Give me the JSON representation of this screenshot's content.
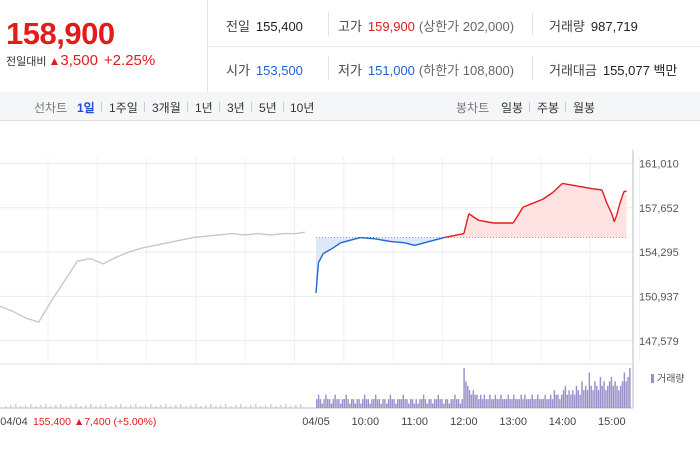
{
  "quote": {
    "price": "158,900",
    "change_label": "전일대비",
    "change_arrow": "▲",
    "change_value": "3,500",
    "change_percent": "+2.25%"
  },
  "stats": {
    "prev_close_label": "전일",
    "prev_close": "155,400",
    "high_label": "고가",
    "high": "159,900",
    "upper_limit": "(상한가 202,000)",
    "volume_label": "거래량",
    "volume": "987,719",
    "open_label": "시가",
    "open": "153,500",
    "low_label": "저가",
    "low": "151,000",
    "lower_limit": "(하한가 108,800)",
    "trade_value_label": "거래대금",
    "trade_value": "155,077 백만"
  },
  "period_bar": {
    "line_label": "선차트",
    "periods": [
      "1일",
      "1주일",
      "3개월",
      "1년",
      "3년",
      "5년",
      "10년"
    ],
    "active_period": "1일",
    "candle_label": "봉차트",
    "candles": [
      "일봉",
      "주봉",
      "월봉"
    ]
  },
  "colors": {
    "up": "#e21b1b",
    "down": "#1f65d6",
    "prev_day": "#c8c8c8",
    "volume": "#9b8fc9"
  },
  "chart_data": [
    {
      "type": "line",
      "name": "intraday-price",
      "ylim": [
        146500,
        161500
      ],
      "yticks": [
        "161,010",
        "157,652",
        "154,295",
        "150,937",
        "147,579"
      ],
      "ytick_values": [
        161010,
        157652,
        154295,
        150937,
        147579
      ],
      "xticks": [
        "04/04",
        "04/05",
        "10:00",
        "11:00",
        "12:00",
        "13:00",
        "14:00",
        "15:00"
      ],
      "xtick_times": [
        0,
        9,
        10,
        11,
        12,
        13,
        14,
        15
      ],
      "prev_close": 155400,
      "prev_day_legend": "04/04  155,400 ▲7,400 (+5.00%)",
      "prev_day_series": [
        [
          0,
          150200
        ],
        [
          0.3,
          149800
        ],
        [
          0.6,
          149300
        ],
        [
          0.9,
          149000
        ],
        [
          1.2,
          150600
        ],
        [
          1.5,
          152100
        ],
        [
          1.8,
          153600
        ],
        [
          2.1,
          153800
        ],
        [
          2.4,
          153400
        ],
        [
          2.7,
          153900
        ],
        [
          3.0,
          154300
        ],
        [
          3.3,
          154600
        ],
        [
          3.6,
          154800
        ],
        [
          3.9,
          155000
        ],
        [
          4.2,
          155200
        ],
        [
          4.5,
          155400
        ],
        [
          4.8,
          155500
        ],
        [
          5.1,
          155600
        ],
        [
          5.4,
          155700
        ],
        [
          5.7,
          155600
        ],
        [
          6.0,
          155700
        ],
        [
          6.3,
          155600
        ],
        [
          6.6,
          155700
        ],
        [
          6.9,
          155700
        ],
        [
          7.1,
          155800
        ]
      ],
      "today_series": [
        [
          9.0,
          151200
        ],
        [
          9.05,
          153500
        ],
        [
          9.15,
          154200
        ],
        [
          9.3,
          154500
        ],
        [
          9.5,
          155000
        ],
        [
          9.7,
          155200
        ],
        [
          9.9,
          155400
        ],
        [
          10.2,
          155300
        ],
        [
          10.5,
          155100
        ],
        [
          10.8,
          155000
        ],
        [
          11.0,
          154800
        ],
        [
          11.3,
          155100
        ],
        [
          11.6,
          155400
        ],
        [
          12.0,
          155700
        ],
        [
          12.1,
          157200
        ],
        [
          12.3,
          156700
        ],
        [
          12.6,
          156500
        ],
        [
          13.0,
          156500
        ],
        [
          13.2,
          157700
        ],
        [
          13.4,
          158000
        ],
        [
          13.6,
          158300
        ],
        [
          13.8,
          158800
        ],
        [
          14.0,
          159500
        ],
        [
          14.3,
          159300
        ],
        [
          14.6,
          159100
        ],
        [
          14.8,
          159000
        ],
        [
          14.9,
          158000
        ],
        [
          15.0,
          157200
        ],
        [
          15.05,
          156600
        ],
        [
          15.1,
          157100
        ],
        [
          15.15,
          157800
        ],
        [
          15.2,
          158400
        ],
        [
          15.25,
          158900
        ],
        [
          15.3,
          158900
        ]
      ],
      "legend": "거래량",
      "volume_series": [
        2,
        3,
        2,
        1,
        2,
        3,
        2,
        2,
        1,
        2,
        3,
        2,
        2,
        1,
        2,
        2,
        3,
        2,
        1,
        2,
        2,
        1,
        2,
        2,
        1,
        2,
        3,
        2,
        2,
        1,
        2,
        2,
        3,
        2,
        2,
        1,
        2,
        2,
        1,
        2,
        3,
        2,
        2,
        1,
        2,
        2,
        2,
        3,
        2,
        2,
        1,
        2,
        2,
        1,
        2,
        1,
        2,
        2,
        3,
        2,
        1,
        2,
        2,
        1,
        2,
        2,
        3,
        2,
        2,
        1,
        2,
        2,
        1,
        2,
        2,
        3,
        2,
        2,
        1,
        2,
        9,
        6,
        5,
        4,
        3,
        4,
        3,
        3,
        2,
        3,
        2,
        3,
        2,
        2,
        3,
        2,
        2,
        3,
        2,
        2,
        3,
        2,
        2,
        2,
        3,
        2,
        2,
        3,
        2,
        2,
        2,
        3,
        2,
        3,
        2,
        2,
        2,
        3,
        2,
        2,
        3,
        2,
        2,
        2,
        3,
        2,
        2,
        3,
        2,
        4,
        3,
        3,
        2,
        3,
        4,
        5,
        3,
        4,
        3,
        4,
        3,
        5,
        4,
        3,
        6,
        4,
        5,
        4,
        8,
        5,
        4,
        6,
        5,
        4,
        7,
        5,
        6,
        4,
        5,
        6,
        7,
        5,
        6,
        5,
        4,
        5,
        6,
        8,
        6,
        7,
        9
      ]
    }
  ]
}
